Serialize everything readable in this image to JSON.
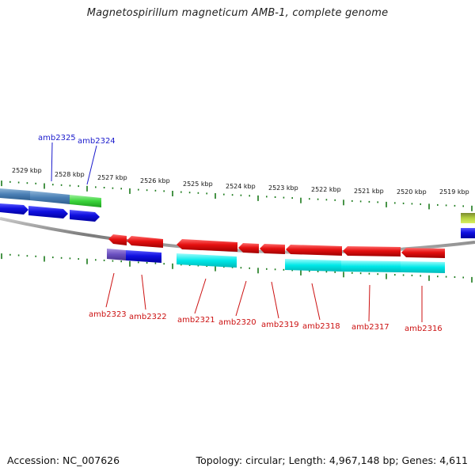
{
  "title": "Magnetospirillum magneticum AMB-1, complete genome",
  "footer": {
    "accession": "Accession: NC_007626",
    "topology": "Topology: circular; Length: 4,967,148 bp; Genes: 4,611"
  },
  "colors": {
    "backbone": "#8a8a8a",
    "tick": "#1a7a1a",
    "forward_label": "#1a1acc",
    "reverse_label": "#cc1111",
    "forward_cds": "#1010e0",
    "reverse_cds": "#e01010",
    "reverse_gene": "#00e5e5",
    "forward_gene": "#4a7fb5",
    "rna_gene": "#3bd43b",
    "misc_gene": "#6a4fc0"
  },
  "scale_labels": [
    "2529 kbp",
    "2528 kbp",
    "2527 kbp",
    "2526 kbp",
    "2525 kbp",
    "2524 kbp",
    "2523 kbp",
    "2522 kbp",
    "2521 kbp",
    "2520 kbp",
    "2519 kbp"
  ],
  "forward_genes": [
    {
      "id": "amb2325"
    },
    {
      "id": "amb2324"
    }
  ],
  "reverse_genes": [
    {
      "id": "amb2323"
    },
    {
      "id": "amb2322"
    },
    {
      "id": "amb2321"
    },
    {
      "id": "amb2320"
    },
    {
      "id": "amb2319"
    },
    {
      "id": "amb2318"
    },
    {
      "id": "amb2317"
    },
    {
      "id": "amb2316"
    }
  ]
}
